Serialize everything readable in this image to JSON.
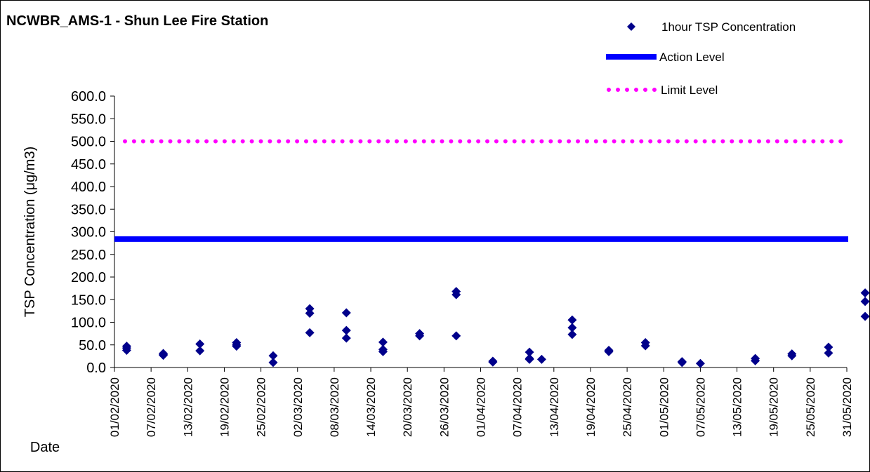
{
  "chart_data": {
    "type": "scatter",
    "title": "NCWBR_AMS-1 - Shun Lee Fire Station",
    "ylabel": "TSP Concentration (μg/m3)",
    "xlabel": "Date",
    "ylim": [
      0,
      600
    ],
    "xlim": [
      "01/02/2020",
      "31/05/2020"
    ],
    "y_ticks": [
      "0.0",
      "50.0",
      "100.0",
      "150.0",
      "200.0",
      "250.0",
      "300.0",
      "350.0",
      "400.0",
      "450.0",
      "500.0",
      "550.0",
      "600.0"
    ],
    "x_ticks": [
      "01/02/2020",
      "07/02/2020",
      "13/02/2020",
      "19/02/2020",
      "25/02/2020",
      "02/03/2020",
      "08/03/2020",
      "14/03/2020",
      "20/03/2020",
      "26/03/2020",
      "01/04/2020",
      "07/04/2020",
      "13/04/2020",
      "19/04/2020",
      "25/04/2020",
      "01/05/2020",
      "07/05/2020",
      "13/05/2020",
      "19/05/2020",
      "25/05/2020",
      "31/05/2020"
    ],
    "grid": false,
    "legend_position": "top-right",
    "series": [
      {
        "name": "1hour TSP Concentration",
        "color": "#00008B",
        "marker": "diamond",
        "points": [
          [
            "03/02/2020",
            47
          ],
          [
            "03/02/2020",
            38
          ],
          [
            "03/02/2020",
            43
          ],
          [
            "09/02/2020",
            31
          ],
          [
            "09/02/2020",
            27
          ],
          [
            "09/02/2020",
            29
          ],
          [
            "15/02/2020",
            52
          ],
          [
            "15/02/2020",
            37
          ],
          [
            "21/02/2020",
            55
          ],
          [
            "21/02/2020",
            47
          ],
          [
            "21/02/2020",
            50
          ],
          [
            "27/02/2020",
            26
          ],
          [
            "27/02/2020",
            11
          ],
          [
            "04/03/2020",
            130
          ],
          [
            "04/03/2020",
            120
          ],
          [
            "04/03/2020",
            77
          ],
          [
            "10/03/2020",
            121
          ],
          [
            "10/03/2020",
            82
          ],
          [
            "10/03/2020",
            65
          ],
          [
            "16/03/2020",
            56
          ],
          [
            "16/03/2020",
            40
          ],
          [
            "16/03/2020",
            35
          ],
          [
            "22/03/2020",
            75
          ],
          [
            "22/03/2020",
            70
          ],
          [
            "28/03/2020",
            168
          ],
          [
            "28/03/2020",
            161
          ],
          [
            "28/03/2020",
            70
          ],
          [
            "03/04/2020",
            14
          ],
          [
            "03/04/2020",
            12
          ],
          [
            "09/04/2020",
            34
          ],
          [
            "09/04/2020",
            20
          ],
          [
            "09/04/2020",
            18
          ],
          [
            "11/04/2020",
            18
          ],
          [
            "16/04/2020",
            105
          ],
          [
            "16/04/2020",
            88
          ],
          [
            "16/04/2020",
            73
          ],
          [
            "22/04/2020",
            38
          ],
          [
            "22/04/2020",
            35
          ],
          [
            "28/04/2020",
            55
          ],
          [
            "28/04/2020",
            48
          ],
          [
            "04/05/2020",
            13
          ],
          [
            "04/05/2020",
            11
          ],
          [
            "07/05/2020",
            9
          ],
          [
            "16/05/2020",
            20
          ],
          [
            "16/05/2020",
            15
          ],
          [
            "22/05/2020",
            30
          ],
          [
            "22/05/2020",
            26
          ],
          [
            "28/05/2020",
            45
          ],
          [
            "28/05/2020",
            32
          ],
          [
            "03/06/2020",
            165
          ],
          [
            "03/06/2020",
            146
          ],
          [
            "03/06/2020",
            113
          ]
        ]
      },
      {
        "name": "Action Level",
        "color": "#0000FF",
        "line_style": "solid",
        "value": 284
      },
      {
        "name": "Limit Level",
        "color": "#FF00FF",
        "line_style": "dotted",
        "value": 500
      }
    ]
  }
}
